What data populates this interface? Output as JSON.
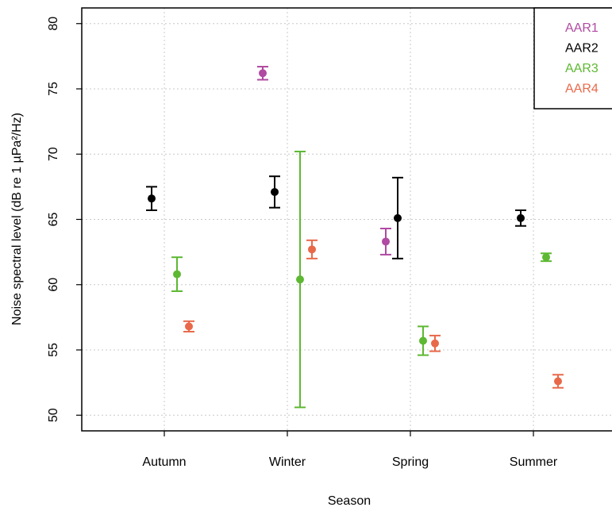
{
  "chart_data": {
    "type": "errorbar",
    "x_label": "Season",
    "y_label": "Noise spectral level (dB re 1 µPa²/Hz)",
    "categories": [
      "Autumn",
      "Winter",
      "Spring",
      "Summer"
    ],
    "ylim": [
      48.8,
      81.2
    ],
    "yticks": [
      50,
      55,
      60,
      65,
      70,
      75,
      80
    ],
    "grid": true,
    "legend": "top-right",
    "series": [
      {
        "name": "AAR1",
        "color": "#b04aa2",
        "values": [
          null,
          76.2,
          63.3,
          null
        ],
        "errors": [
          null,
          0.5,
          1.0,
          null
        ]
      },
      {
        "name": "AAR2",
        "color": "#000000",
        "values": [
          66.6,
          67.1,
          65.1,
          65.1
        ],
        "errors": [
          0.9,
          1.2,
          3.1,
          0.6
        ]
      },
      {
        "name": "AAR3",
        "color": "#5db832",
        "values": [
          60.8,
          60.4,
          55.7,
          62.1
        ],
        "errors": [
          1.3,
          9.8,
          1.1,
          0.3
        ]
      },
      {
        "name": "AAR4",
        "color": "#e8694a",
        "values": [
          56.8,
          62.7,
          55.5,
          52.6
        ],
        "errors": [
          0.4,
          0.7,
          0.6,
          0.5
        ]
      }
    ]
  }
}
